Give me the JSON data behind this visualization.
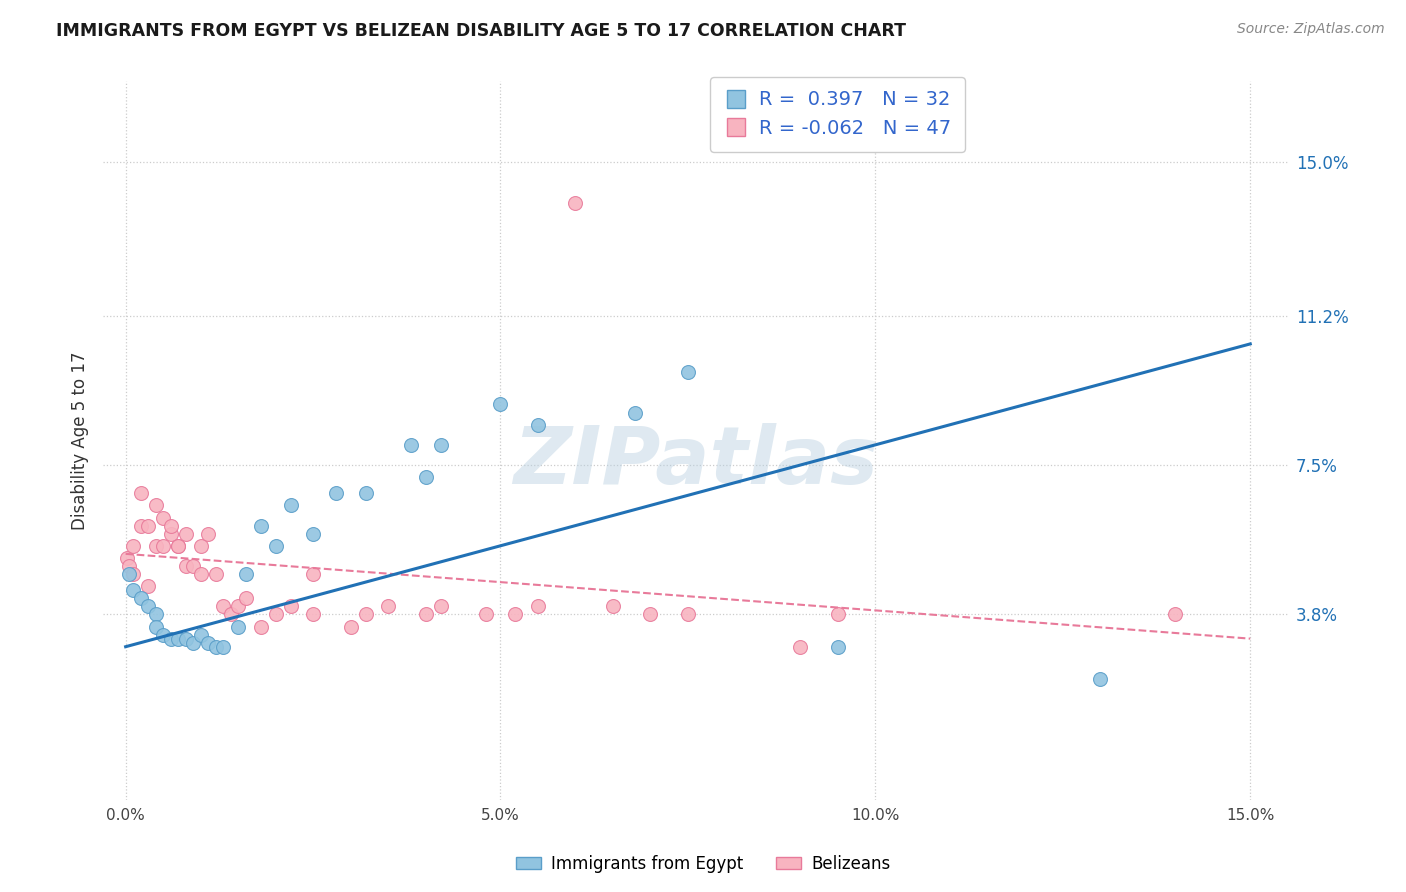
{
  "title": "IMMIGRANTS FROM EGYPT VS BELIZEAN DISABILITY AGE 5 TO 17 CORRELATION CHART",
  "source": "Source: ZipAtlas.com",
  "ylabel": "Disability Age 5 to 17",
  "xlim": [
    0.0,
    0.15
  ],
  "ylim": [
    0.0,
    0.17
  ],
  "ytick_vals": [
    0.038,
    0.075,
    0.112,
    0.15
  ],
  "ytick_labels": [
    "3.8%",
    "7.5%",
    "11.2%",
    "15.0%"
  ],
  "xtick_vals": [
    0.0,
    0.05,
    0.1,
    0.15
  ],
  "xtick_labels": [
    "0.0%",
    "5.0%",
    "10.0%",
    "15.0%"
  ],
  "color_egypt": "#91c4e0",
  "color_egypt_edge": "#5a9ec9",
  "color_belize": "#f8b4c0",
  "color_belize_edge": "#e87a9a",
  "color_egypt_line": "#2171b5",
  "color_belize_line": "#e87a9a",
  "watermark": "ZIPatlas",
  "bottom_legend_egypt": "Immigrants from Egypt",
  "bottom_legend_belize": "Belizeans",
  "egypt_x": [
    0.0005,
    0.001,
    0.002,
    0.003,
    0.004,
    0.004,
    0.005,
    0.006,
    0.007,
    0.008,
    0.009,
    0.01,
    0.011,
    0.012,
    0.013,
    0.015,
    0.016,
    0.018,
    0.02,
    0.022,
    0.025,
    0.028,
    0.032,
    0.038,
    0.04,
    0.042,
    0.05,
    0.055,
    0.068,
    0.075,
    0.095,
    0.13
  ],
  "egypt_y": [
    0.048,
    0.044,
    0.042,
    0.04,
    0.038,
    0.035,
    0.033,
    0.032,
    0.032,
    0.032,
    0.031,
    0.033,
    0.031,
    0.03,
    0.03,
    0.035,
    0.048,
    0.06,
    0.055,
    0.065,
    0.058,
    0.068,
    0.068,
    0.08,
    0.072,
    0.08,
    0.09,
    0.085,
    0.088,
    0.098,
    0.03,
    0.022
  ],
  "belize_x": [
    0.0002,
    0.0005,
    0.001,
    0.001,
    0.002,
    0.002,
    0.003,
    0.003,
    0.004,
    0.004,
    0.005,
    0.005,
    0.006,
    0.006,
    0.007,
    0.007,
    0.008,
    0.008,
    0.009,
    0.01,
    0.01,
    0.011,
    0.012,
    0.013,
    0.014,
    0.015,
    0.016,
    0.018,
    0.02,
    0.022,
    0.025,
    0.025,
    0.03,
    0.032,
    0.035,
    0.04,
    0.042,
    0.048,
    0.052,
    0.055,
    0.06,
    0.065,
    0.07,
    0.075,
    0.09,
    0.095,
    0.14
  ],
  "belize_y": [
    0.052,
    0.05,
    0.055,
    0.048,
    0.068,
    0.06,
    0.06,
    0.045,
    0.065,
    0.055,
    0.062,
    0.055,
    0.058,
    0.06,
    0.055,
    0.055,
    0.058,
    0.05,
    0.05,
    0.055,
    0.048,
    0.058,
    0.048,
    0.04,
    0.038,
    0.04,
    0.042,
    0.035,
    0.038,
    0.04,
    0.038,
    0.048,
    0.035,
    0.038,
    0.04,
    0.038,
    0.04,
    0.038,
    0.038,
    0.04,
    0.14,
    0.04,
    0.038,
    0.038,
    0.03,
    0.038,
    0.038
  ],
  "egypt_line_x": [
    0.0,
    0.15
  ],
  "egypt_line_y": [
    0.03,
    0.105
  ],
  "belize_line_x": [
    0.0,
    0.15
  ],
  "belize_line_y": [
    0.053,
    0.032
  ]
}
